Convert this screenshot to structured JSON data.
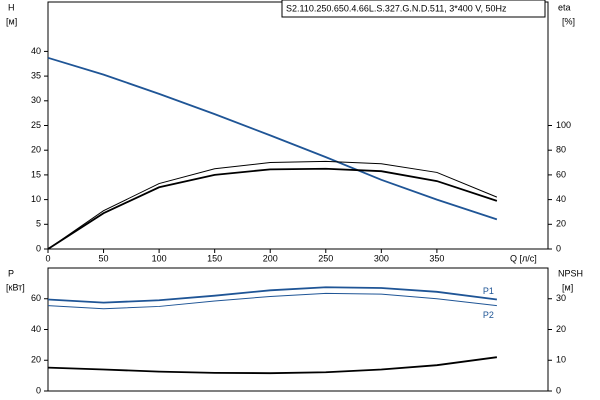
{
  "chart_data": [
    {
      "type": "line",
      "title": "S2.110.250.650.4.66L.S.327.G.N.D.511, 3*400 V, 50Hz",
      "ylabel": "H",
      "yunit": "[м]",
      "y2label": "eta",
      "y2unit": "[%]",
      "xlabel": "Q [л/с]",
      "x": [
        0,
        50,
        100,
        150,
        200,
        250,
        300,
        350,
        404
      ],
      "xlim": [
        0,
        450
      ],
      "xticks": [
        0,
        50,
        100,
        150,
        200,
        250,
        300,
        350
      ],
      "ylim": [
        0,
        50
      ],
      "yticks": [
        0,
        5,
        10,
        15,
        20,
        25,
        30,
        35,
        40
      ],
      "y2lim": [
        0,
        200
      ],
      "y2ticks": [
        0,
        20,
        40,
        60,
        80,
        100
      ],
      "series": [
        {
          "color": "#1f5596",
          "values": [
            38.7,
            35.3,
            31.4,
            27.3,
            23,
            18.6,
            14,
            10,
            6
          ]
        },
        {
          "color": "#000000",
          "axis": "y2",
          "values": [
            0,
            31,
            53,
            65,
            70,
            71,
            69,
            62,
            42
          ]
        },
        {
          "color": "#000000",
          "axis": "y2",
          "values": [
            0,
            29,
            50,
            60,
            64.5,
            65,
            63,
            55,
            39
          ]
        }
      ]
    },
    {
      "type": "line",
      "ylabel": "P",
      "yunit": "[кВт]",
      "y2label": "NPSH",
      "y2unit": "[м]",
      "x": [
        0,
        50,
        100,
        150,
        200,
        250,
        300,
        350,
        404
      ],
      "xlim": [
        0,
        450
      ],
      "ylim": [
        0,
        80
      ],
      "yticks": [
        0,
        20,
        40,
        60
      ],
      "y2lim": [
        0,
        40
      ],
      "y2ticks": [
        0,
        10,
        20,
        30
      ],
      "series": [
        {
          "name": "P1",
          "color": "#1f5596",
          "values": [
            59.5,
            57.5,
            59,
            62,
            65.5,
            67.5,
            67,
            64.5,
            59.5
          ]
        },
        {
          "name": "P2",
          "color": "#1f5596",
          "values": [
            55.5,
            53.5,
            55,
            58.5,
            61.5,
            63.5,
            63,
            60,
            55.5
          ]
        },
        {
          "color": "#000000",
          "axis": "y2",
          "values": [
            7.6,
            7,
            6.3,
            5.9,
            5.8,
            6.1,
            7,
            8.4,
            11
          ]
        }
      ]
    }
  ]
}
